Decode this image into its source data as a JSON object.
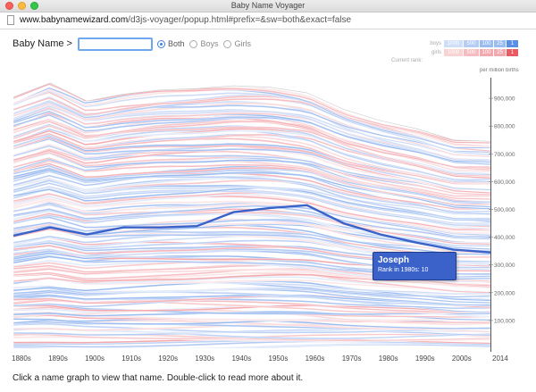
{
  "window": {
    "title": "Baby Name Voyager"
  },
  "browser": {
    "url_domain": "www.babynamewizard.com",
    "url_path": "/d3js-voyager/popup.html#prefix=&sw=both&exact=false"
  },
  "controls": {
    "name_label": "Baby Name >",
    "name_input_value": "",
    "radios": [
      {
        "label": "Both",
        "selected": true
      },
      {
        "label": "Boys",
        "selected": false
      },
      {
        "label": "Girls",
        "selected": false
      }
    ]
  },
  "rank_legend": {
    "boys_label": "boys",
    "girls_label": "girls",
    "current_rank_label": "Current rank:",
    "buckets": [
      "1000",
      "500",
      "100",
      "25",
      "1"
    ]
  },
  "chart_data": {
    "type": "area",
    "ylabel": "per million births",
    "categories": [
      "1880s",
      "1890s",
      "1900s",
      "1910s",
      "1920s",
      "1930s",
      "1940s",
      "1950s",
      "1960s",
      "1970s",
      "1980s",
      "1990s",
      "2000s",
      "2014"
    ],
    "y_ticks": [
      "100,000",
      "200,000",
      "300,000",
      "400,000",
      "500,000",
      "600,000",
      "700,000",
      "800,000",
      "900,000"
    ],
    "ylim": [
      0,
      1000000
    ],
    "total_per_million": [
      905000,
      955000,
      890000,
      915000,
      930000,
      935000,
      945000,
      940000,
      920000,
      860000,
      820000,
      790000,
      750000,
      745000
    ],
    "highlight_series": {
      "name": "Joseph",
      "boundary_per_million": [
        405000,
        435000,
        410000,
        435000,
        435000,
        440000,
        490000,
        505000,
        515000,
        450000,
        410000,
        380000,
        355000,
        345000
      ]
    },
    "colors": {
      "boys": "#9bbcf0",
      "girls": "#f3a8ad",
      "highlight": "#3a62c9"
    }
  },
  "tooltip": {
    "name": "Joseph",
    "rank_text": "Rank in 1980s: 10"
  },
  "footer": {
    "text": "Click a name graph to view that name. Double-click to read more about it."
  }
}
